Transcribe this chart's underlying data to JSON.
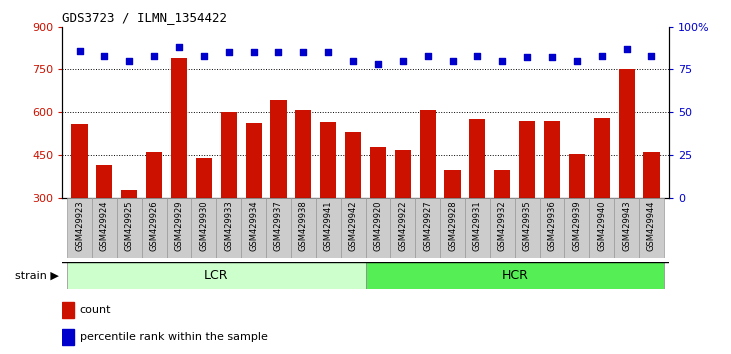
{
  "title": "GDS3723 / ILMN_1354422",
  "categories": [
    "GSM429923",
    "GSM429924",
    "GSM429925",
    "GSM429926",
    "GSM429929",
    "GSM429930",
    "GSM429933",
    "GSM429934",
    "GSM429937",
    "GSM429938",
    "GSM429941",
    "GSM429942",
    "GSM429920",
    "GSM429922",
    "GSM429927",
    "GSM429928",
    "GSM429931",
    "GSM429932",
    "GSM429935",
    "GSM429936",
    "GSM429939",
    "GSM429940",
    "GSM429943",
    "GSM429944"
  ],
  "bar_values": [
    558,
    415,
    328,
    460,
    790,
    440,
    603,
    563,
    645,
    608,
    565,
    530,
    480,
    470,
    608,
    400,
    578,
    400,
    570,
    570,
    455,
    582,
    750,
    460
  ],
  "percentile_values": [
    86,
    83,
    80,
    83,
    88,
    83,
    85,
    85,
    85,
    85,
    85,
    80,
    78,
    80,
    83,
    80,
    83,
    80,
    82,
    82,
    80,
    83,
    87,
    83
  ],
  "bar_color": "#cc1100",
  "dot_color": "#0000cc",
  "ylim_left": [
    300,
    900
  ],
  "ylim_right": [
    0,
    100
  ],
  "yticks_left": [
    300,
    450,
    600,
    750,
    900
  ],
  "yticks_right": [
    0,
    25,
    50,
    75,
    100
  ],
  "grid_values": [
    450,
    600,
    750
  ],
  "lcr_count": 12,
  "hcr_count": 12,
  "lcr_color": "#ccffcc",
  "hcr_color": "#55ee55",
  "strain_label": "strain",
  "lcr_label": "LCR",
  "hcr_label": "HCR",
  "legend_count": "count",
  "legend_percentile": "percentile rank within the sample",
  "bg_color": "#ffffff",
  "tick_bg_color": "#cccccc"
}
